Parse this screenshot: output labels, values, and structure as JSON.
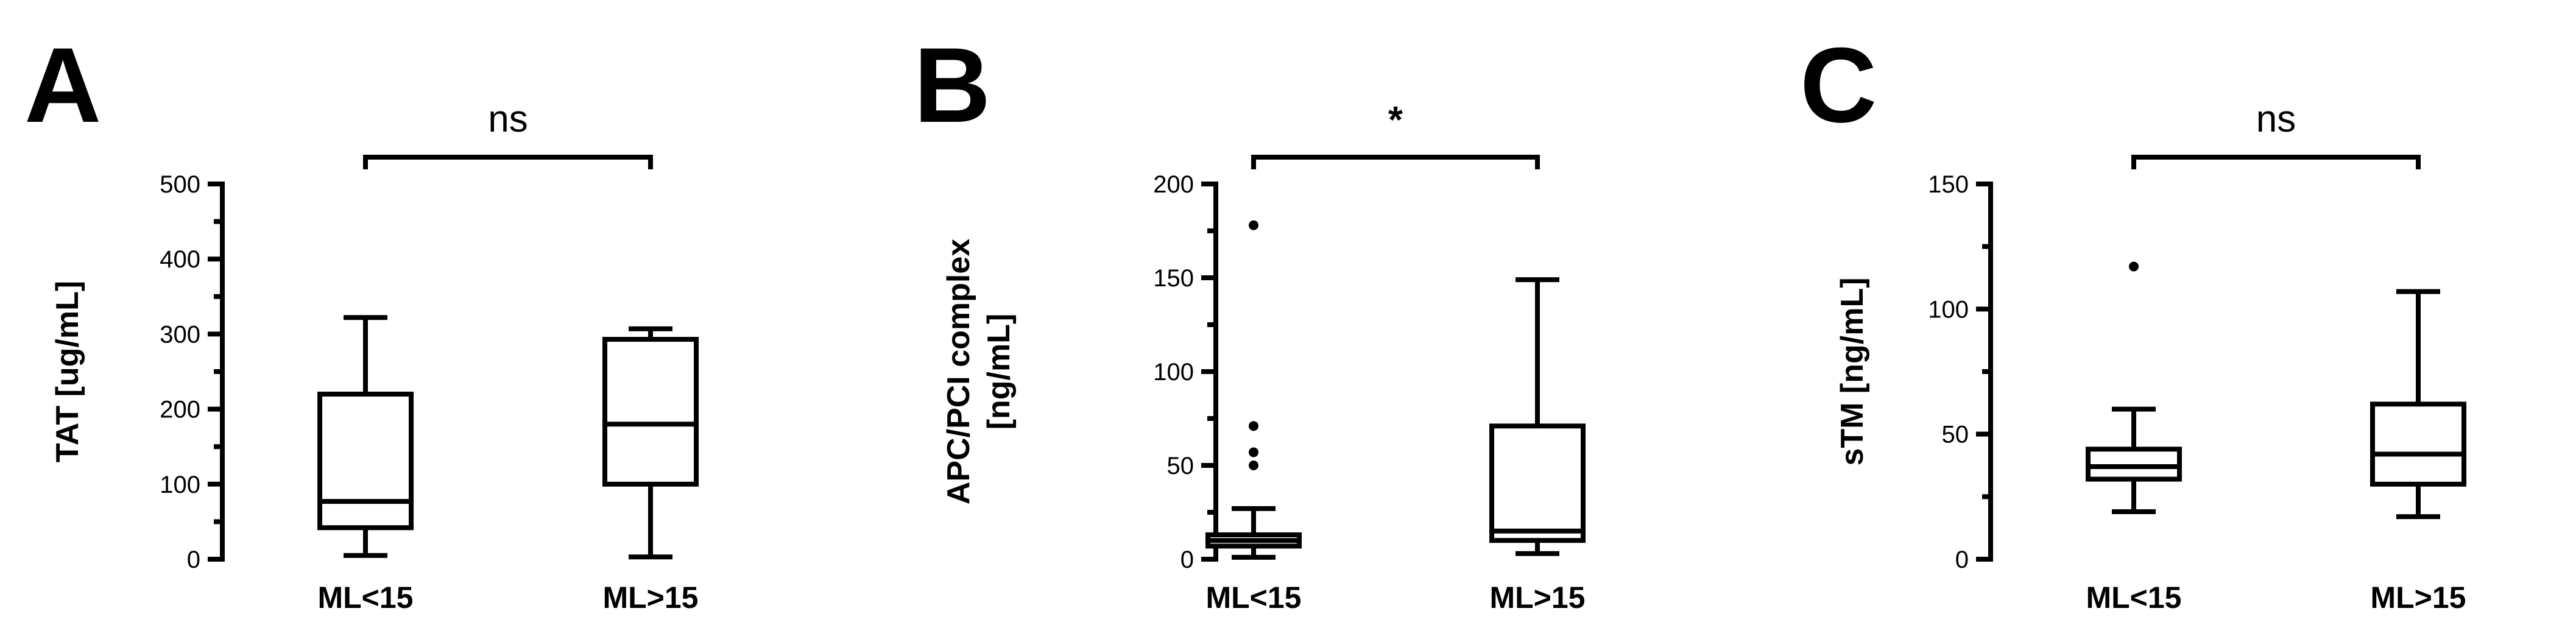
{
  "chart_data": [
    {
      "type": "box",
      "panel_label": "A",
      "ylabel": [
        "TAT [ug/mL]"
      ],
      "ylim": [
        0,
        500
      ],
      "yticks": [
        0,
        100,
        200,
        300,
        400,
        500
      ],
      "minor_ticks": true,
      "categories": [
        "ML<15",
        "ML>15"
      ],
      "boxes": [
        {
          "category": "ML<15",
          "whisker_low": 5,
          "q1": 42,
          "median": 77,
          "q3": 220,
          "whisker_high": 322,
          "outliers": []
        },
        {
          "category": "ML>15",
          "whisker_low": 3,
          "q1": 100,
          "median": 180,
          "q3": 293,
          "whisker_high": 307,
          "outliers": []
        }
      ],
      "significance": {
        "between": [
          "ML<15",
          "ML>15"
        ],
        "label": "ns"
      }
    },
    {
      "type": "box",
      "panel_label": "B",
      "ylabel": [
        "APC/PCI complex",
        "[ng/mL]"
      ],
      "ylim": [
        0,
        200
      ],
      "yticks": [
        0,
        50,
        100,
        150,
        200
      ],
      "minor_ticks": true,
      "categories": [
        "ML<15",
        "ML>15"
      ],
      "boxes": [
        {
          "category": "ML<15",
          "whisker_low": 1,
          "q1": 7,
          "median": 10,
          "q3": 13,
          "whisker_high": 27,
          "outliers": [
            50,
            57,
            71,
            178
          ]
        },
        {
          "category": "ML>15",
          "whisker_low": 3,
          "q1": 10,
          "median": 15,
          "q3": 71,
          "whisker_high": 149,
          "outliers": []
        }
      ],
      "significance": {
        "between": [
          "ML<15",
          "ML>15"
        ],
        "label": "*"
      }
    },
    {
      "type": "box",
      "panel_label": "C",
      "ylabel": [
        "sTM [ng/mL]"
      ],
      "ylim": [
        0,
        150
      ],
      "yticks": [
        0,
        50,
        100,
        150
      ],
      "minor_ticks": true,
      "categories": [
        "ML<15",
        "ML>15"
      ],
      "boxes": [
        {
          "category": "ML<15",
          "whisker_low": 19,
          "q1": 32,
          "median": 37,
          "q3": 44,
          "whisker_high": 60,
          "outliers": [
            117
          ]
        },
        {
          "category": "ML>15",
          "whisker_low": 17,
          "q1": 30,
          "median": 42,
          "q3": 62,
          "whisker_high": 107,
          "outliers": []
        }
      ],
      "significance": {
        "between": [
          "ML<15",
          "ML>15"
        ],
        "label": "ns"
      }
    }
  ]
}
